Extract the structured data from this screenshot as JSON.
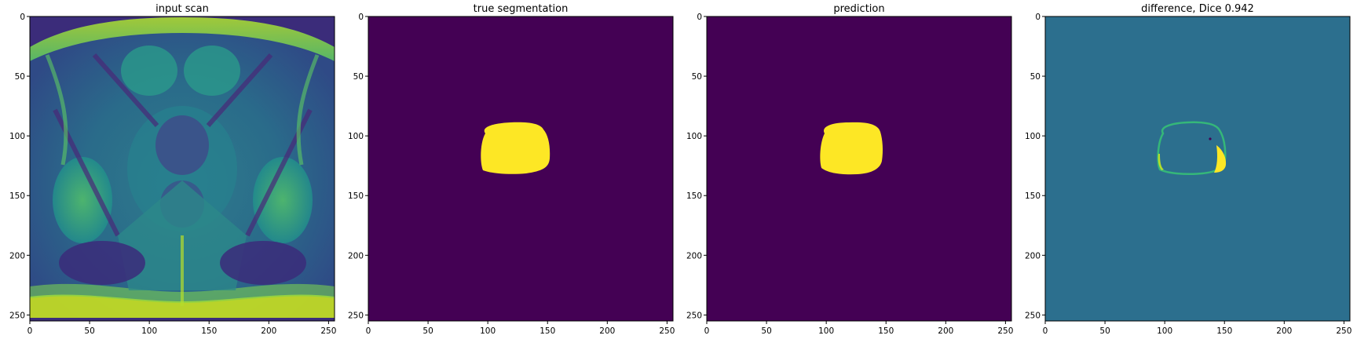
{
  "figure": {
    "panels": [
      {
        "id": "input",
        "title": "input scan",
        "image": "prostate MRI axial slice, viridis colormap",
        "extent": [
          0,
          255,
          255,
          0
        ]
      },
      {
        "id": "truth",
        "title": "true segmentation",
        "image": "binary mask, viridis colormap",
        "background_color": "#440154",
        "foreground_color": "#fde725",
        "extent": [
          0,
          255,
          255,
          0
        ]
      },
      {
        "id": "pred",
        "title": "prediction",
        "image": "binary mask, viridis colormap",
        "background_color": "#440154",
        "foreground_color": "#fde725",
        "extent": [
          0,
          255,
          255,
          0
        ]
      },
      {
        "id": "diff",
        "title": "difference, Dice 0.942",
        "image": "difference map, viridis colormap",
        "background_color": "#2c6f8e",
        "positive_color": "#fde725",
        "negative_color": "#440154",
        "extent": [
          0,
          255,
          255,
          0
        ]
      }
    ],
    "x_ticks": [
      "0",
      "50",
      "100",
      "150",
      "200",
      "250"
    ],
    "y_ticks": [
      "0",
      "50",
      "100",
      "150",
      "200",
      "250"
    ],
    "tick_values": [
      0,
      50,
      100,
      150,
      200,
      250
    ],
    "colors": {
      "viridis_dark": "#440154",
      "viridis_mid": "#2c6f8e",
      "viridis_teal": "#21918c",
      "viridis_green": "#5ec962",
      "viridis_yellow": "#fde725"
    }
  }
}
